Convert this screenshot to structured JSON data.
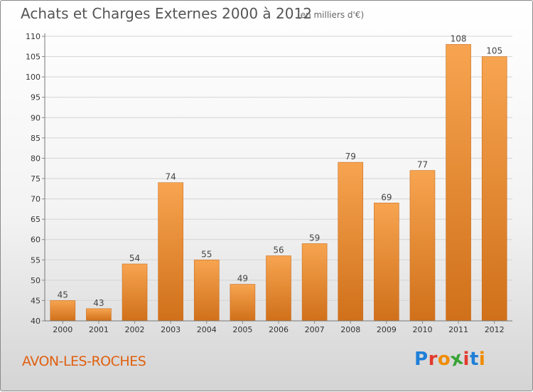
{
  "header": {
    "title": "Achats et Charges Externes 2000 à 2012",
    "subtitle": "(en milliers d'€)"
  },
  "footer": {
    "place": "AVON-LES-ROCHES",
    "brand_letters": [
      "P",
      "r",
      "o",
      "x",
      "i",
      "t",
      "i"
    ],
    "brand_colors": [
      "#1e7fd8",
      "#e23a2e",
      "#f08c00",
      "#3aa335",
      "#e23a2e",
      "#1e7fd8",
      "#f08c00"
    ]
  },
  "colors": {
    "bar_light": "#f7a450",
    "bar_dark": "#d0701a",
    "bar_edge": "#c96e20",
    "grid": "#d4d4d4",
    "axis_text": "#333333"
  },
  "chart_data": {
    "type": "bar",
    "categories": [
      "2000",
      "2001",
      "2002",
      "2003",
      "2004",
      "2005",
      "2006",
      "2007",
      "2008",
      "2009",
      "2010",
      "2011",
      "2012"
    ],
    "values": [
      45,
      43,
      54,
      74,
      55,
      49,
      56,
      59,
      79,
      69,
      77,
      108,
      105
    ],
    "ylim": [
      40,
      110
    ],
    "yticks": [
      40,
      45,
      50,
      55,
      60,
      65,
      70,
      75,
      80,
      85,
      90,
      95,
      100,
      105,
      110
    ],
    "grid": true,
    "data_labels": true
  }
}
